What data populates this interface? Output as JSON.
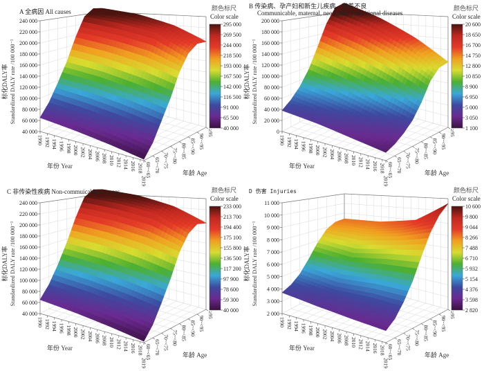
{
  "common": {
    "ylabel_cn": "标化DALY率",
    "ylabel_en": "Standardized DALY rate /100 000⁻¹",
    "xlabel": "年份 Year",
    "agelabel": "年龄 Age",
    "colorbar_title_cn": "颜色标尺",
    "colorbar_title_en": "Color scale",
    "year_ticks": [
      "1990",
      "1992",
      "1994",
      "1996",
      "1998",
      "2000",
      "2002",
      "2004",
      "2006",
      "2008",
      "2010",
      "2012",
      "2014",
      "2016",
      "2018",
      "2019"
    ],
    "age_ticks": [
      "60~<65",
      "65~<70",
      "70~<75",
      "75~<80",
      "80~<85",
      "85~<90",
      "90~<95",
      "≥95"
    ],
    "colormap": [
      "#3a1040",
      "#6a2a90",
      "#3d4aa0",
      "#3aa8d8",
      "#4cb030",
      "#d8dc30",
      "#f0a020",
      "#e43a28",
      "#c02820",
      "#4a1410"
    ]
  },
  "chart_data": [
    {
      "type": "surface",
      "panel": "A",
      "title": "A 全病因  All causes",
      "title_line2": "",
      "zlim": [
        40000,
        240000
      ],
      "z_ticks": [
        "40 000",
        "60 000",
        "80 000",
        "100 000",
        "120 000",
        "140 000",
        "160 000",
        "180 000",
        "200 000",
        "220 000",
        "240 000"
      ],
      "colorbar_ticks": [
        "295 000",
        "269 500",
        "244 000",
        "218 500",
        "193 000",
        "167 500",
        "142 000",
        "116 500",
        "91 000",
        "65 500",
        "40 000"
      ],
      "years": [
        1990,
        2000,
        2010,
        2019
      ],
      "values": [
        [
          65000,
          85000,
          115000,
          150000,
          195000,
          235000,
          250000,
          248000
        ],
        [
          58000,
          78000,
          108000,
          142000,
          185000,
          225000,
          242000,
          238000
        ],
        [
          50000,
          70000,
          98000,
          130000,
          172000,
          212000,
          225000,
          220000
        ],
        [
          42000,
          60000,
          88000,
          118000,
          155000,
          182000,
          195000,
          195000
        ]
      ]
    },
    {
      "type": "surface",
      "panel": "B",
      "title": "B 传染病、孕产妇和新生儿疾病、营养不良",
      "title_line2": "Communicable, maternal, neonataland nutritional diseases",
      "zlim": [
        0,
        200000
      ],
      "z_ticks": [
        "0",
        "20 000",
        "40 000",
        "60 000",
        "80 000",
        "100 000",
        "120 000",
        "140 000",
        "160 000",
        "180 000",
        "200 000"
      ],
      "colorbar_ticks": [
        "20 600",
        "18 650",
        "16 700",
        "14 750",
        "12 800",
        "10 850",
        "8 900",
        "6 950",
        "5 000",
        "3 050",
        "1 100"
      ],
      "years": [
        1990,
        2000,
        2010,
        2019
      ],
      "values": [
        [
          38000,
          50000,
          68000,
          95000,
          135000,
          180000,
          212000,
          220000
        ],
        [
          30000,
          40000,
          55000,
          78000,
          112000,
          155000,
          185000,
          190000
        ],
        [
          20000,
          28000,
          40000,
          58000,
          88000,
          125000,
          150000,
          155000
        ],
        [
          12000,
          18000,
          28000,
          42000,
          65000,
          95000,
          113000,
          118000
        ]
      ]
    },
    {
      "type": "surface",
      "panel": "C",
      "title": "C 非传染性疾病  Non-commuicable diseases",
      "title_line2": "",
      "zlim": [
        40000,
        240000
      ],
      "z_ticks": [
        "40 000",
        "60 000",
        "80 000",
        "100 000",
        "120 000",
        "140 000",
        "160 000",
        "180 000",
        "200 000",
        "220 000",
        "240 000"
      ],
      "colorbar_ticks": [
        "233 000",
        "213 700",
        "194 400",
        "175 100",
        "155 800",
        "136 500",
        "117 200",
        "97 900",
        "78 600",
        "59 300",
        "40 000"
      ],
      "years": [
        1990,
        2000,
        2010,
        2019
      ],
      "values": [
        [
          65000,
          85000,
          115000,
          152000,
          198000,
          238000,
          252000,
          250000
        ],
        [
          58000,
          78000,
          108000,
          144000,
          188000,
          228000,
          244000,
          240000
        ],
        [
          50000,
          70000,
          98000,
          132000,
          175000,
          214000,
          228000,
          222000
        ],
        [
          42000,
          60000,
          88000,
          120000,
          158000,
          185000,
          198000,
          196000
        ]
      ]
    },
    {
      "type": "surface",
      "panel": "D",
      "title": "D 伤害 Injuries",
      "title_line2": "",
      "zlim": [
        2000,
        11000
      ],
      "z_ticks": [
        "2 000",
        "3 000",
        "4 000",
        "5 000",
        "6 000",
        "7 000",
        "8 000",
        "9 000",
        "10 000",
        "11 000"
      ],
      "colorbar_ticks": [
        "10 600",
        "9 800",
        "9 044",
        "8 266",
        "7 488",
        "6 710",
        "5 932",
        "5 154",
        "4 376",
        "3 598",
        "2 820"
      ],
      "years": [
        1990,
        2000,
        2010,
        2019
      ],
      "values": [
        [
          3700,
          4000,
          4600,
          5600,
          6800,
          7800,
          8300,
          8400
        ],
        [
          3300,
          3600,
          4200,
          5200,
          6400,
          7600,
          8200,
          8500
        ],
        [
          3000,
          3500,
          4300,
          5400,
          6800,
          8000,
          8800,
          9000
        ],
        [
          2800,
          3300,
          4200,
          5400,
          7000,
          8600,
          9800,
          10600
        ]
      ]
    }
  ]
}
